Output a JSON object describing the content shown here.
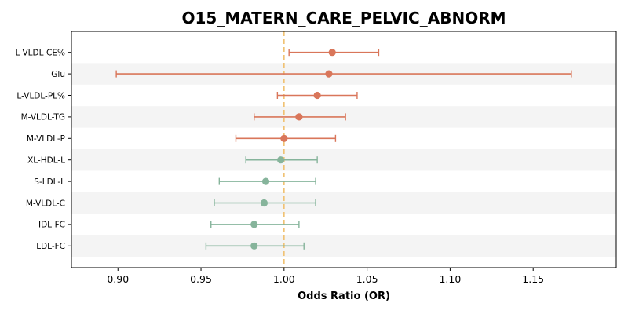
{
  "chart_data": {
    "type": "forest",
    "title": "O15_MATERN_CARE_PELVIC_ABNORM",
    "xlabel": "Odds Ratio (OR)",
    "ylabel": "",
    "xlim": [
      0.872,
      1.2
    ],
    "xticks": [
      0.9,
      0.95,
      1.0,
      1.05,
      1.1,
      1.15
    ],
    "xtick_labels": [
      "0.90",
      "0.95",
      "1.00",
      "1.05",
      "1.10",
      "1.15"
    ],
    "reference_line": 1.0,
    "grid": false,
    "categories": [
      "L-VLDL-CE%",
      "Glu",
      "L-VLDL-PL%",
      "M-VLDL-TG",
      "M-VLDL-P",
      "XL-HDL-L",
      "S-LDL-L",
      "M-VLDL-C",
      "IDL-FC",
      "LDL-FC"
    ],
    "or": [
      1.029,
      1.027,
      1.02,
      1.009,
      1.0,
      0.998,
      0.989,
      0.988,
      0.982,
      0.982
    ],
    "ci_low": [
      1.003,
      0.899,
      0.996,
      0.982,
      0.971,
      0.977,
      0.961,
      0.958,
      0.956,
      0.953
    ],
    "ci_high": [
      1.057,
      1.173,
      1.044,
      1.037,
      1.031,
      1.02,
      1.019,
      1.019,
      1.009,
      1.012
    ],
    "colors": {
      "above_one": "#d9765a",
      "below_one": "#86b49b",
      "reference": "#f0c070",
      "band": "#f4f4f4"
    }
  }
}
